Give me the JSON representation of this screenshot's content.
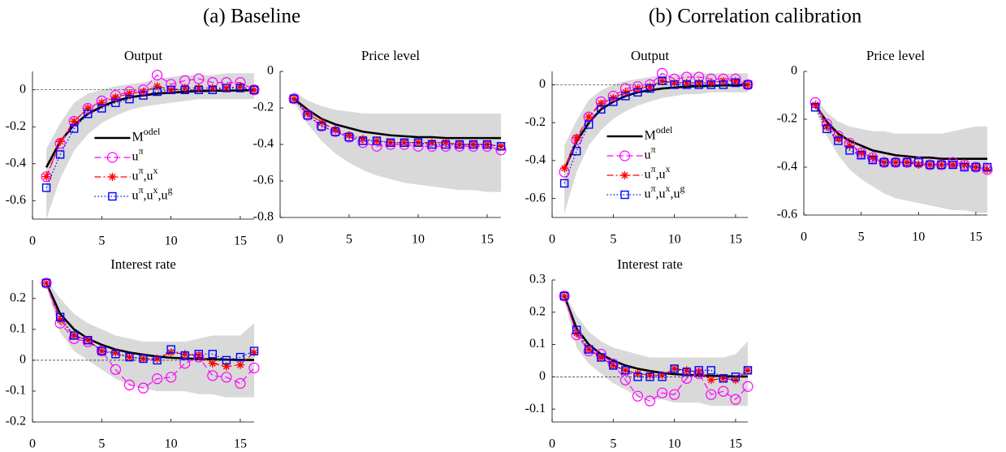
{
  "panel_titles": [
    "(a) Baseline",
    "(b) Correlation calibration"
  ],
  "chart_data": [
    {
      "type": "line",
      "title": "Output",
      "legend": "south",
      "zero_line": true,
      "band_color": "#d9d9d9",
      "x": [
        1,
        2,
        3,
        4,
        5,
        6,
        7,
        8,
        9,
        10,
        11,
        12,
        13,
        14,
        15,
        16
      ],
      "xlim": [
        0,
        16
      ],
      "xticks": [
        0,
        5,
        10,
        15
      ],
      "ylim": [
        -0.7,
        0.1
      ],
      "yticks": [
        -0.6,
        -0.4,
        -0.2,
        0
      ],
      "band_lower": [
        -0.7,
        -0.48,
        -0.33,
        -0.24,
        -0.18,
        -0.14,
        -0.11,
        -0.09,
        -0.08,
        -0.07,
        -0.06,
        -0.05,
        -0.05,
        -0.05,
        -0.05,
        -0.05
      ],
      "band_upper": [
        -0.32,
        -0.18,
        -0.07,
        -0.02,
        0,
        0.02,
        0.03,
        0.04,
        0.06,
        0.07,
        0.08,
        0.08,
        0.08,
        0.09,
        0.09,
        0.09
      ],
      "series": [
        {
          "name": "Model",
          "color": "#000000",
          "line": "solid",
          "marker": "none",
          "values": [
            -0.42,
            -0.28,
            -0.19,
            -0.13,
            -0.09,
            -0.06,
            -0.04,
            -0.03,
            -0.02,
            -0.015,
            -0.01,
            -0.007,
            -0.005,
            -0.004,
            -0.003,
            -0.002
          ]
        },
        {
          "name": "uπ",
          "color": "#ff00ff",
          "line": "dashed",
          "marker": "circle",
          "values": [
            -0.47,
            -0.29,
            -0.17,
            -0.1,
            -0.06,
            -0.03,
            -0.01,
            0,
            0.08,
            0.03,
            0.05,
            0.06,
            0.04,
            0.04,
            0.04,
            0
          ]
        },
        {
          "name": "uπ,ux",
          "color": "#ff0000",
          "line": "dashdot",
          "marker": "asterisk",
          "values": [
            -0.47,
            -0.28,
            -0.17,
            -0.1,
            -0.07,
            -0.04,
            -0.02,
            -0.01,
            0.02,
            0,
            0.01,
            0.01,
            0.01,
            0.01,
            0.02,
            0
          ]
        },
        {
          "name": "uπ,ux,ug",
          "color": "#0000ff",
          "line": "dotted",
          "marker": "square",
          "values": [
            -0.53,
            -0.35,
            -0.21,
            -0.13,
            -0.1,
            -0.07,
            -0.05,
            -0.03,
            -0.01,
            0,
            0,
            0,
            0,
            0.01,
            0.01,
            0
          ]
        }
      ]
    },
    {
      "type": "line",
      "title": "Price level",
      "zero_line": true,
      "band_color": "#d9d9d9",
      "x": [
        1,
        2,
        3,
        4,
        5,
        6,
        7,
        8,
        9,
        10,
        11,
        12,
        13,
        14,
        15,
        16
      ],
      "xlim": [
        0,
        16
      ],
      "xticks": [
        0,
        5,
        10,
        15
      ],
      "ylim": [
        -0.8,
        0
      ],
      "yticks": [
        -0.8,
        -0.6,
        -0.4,
        -0.2,
        0
      ],
      "band_lower": [
        -0.17,
        -0.29,
        -0.38,
        -0.45,
        -0.5,
        -0.54,
        -0.57,
        -0.59,
        -0.61,
        -0.62,
        -0.63,
        -0.64,
        -0.65,
        -0.65,
        -0.66,
        -0.66
      ],
      "band_upper": [
        -0.11,
        -0.16,
        -0.19,
        -0.21,
        -0.22,
        -0.23,
        -0.23,
        -0.23,
        -0.23,
        -0.23,
        -0.23,
        -0.23,
        -0.23,
        -0.23,
        -0.23,
        -0.23
      ],
      "series": [
        {
          "color": "#000000",
          "line": "solid",
          "marker": "none",
          "values": [
            -0.15,
            -0.21,
            -0.26,
            -0.29,
            -0.31,
            -0.33,
            -0.34,
            -0.35,
            -0.355,
            -0.36,
            -0.36,
            -0.365,
            -0.365,
            -0.365,
            -0.365,
            -0.365
          ]
        },
        {
          "color": "#ff00ff",
          "line": "dashed",
          "marker": "circle",
          "values": [
            -0.15,
            -0.24,
            -0.3,
            -0.33,
            -0.36,
            -0.39,
            -0.41,
            -0.4,
            -0.4,
            -0.41,
            -0.41,
            -0.41,
            -0.41,
            -0.41,
            -0.41,
            -0.43
          ]
        },
        {
          "color": "#ff0000",
          "line": "dashdot",
          "marker": "asterisk",
          "values": [
            -0.15,
            -0.23,
            -0.28,
            -0.32,
            -0.35,
            -0.37,
            -0.38,
            -0.39,
            -0.39,
            -0.39,
            -0.39,
            -0.39,
            -0.4,
            -0.4,
            -0.4,
            -0.41
          ]
        },
        {
          "color": "#0000ff",
          "line": "dotted",
          "marker": "square",
          "values": [
            -0.15,
            -0.24,
            -0.3,
            -0.33,
            -0.36,
            -0.38,
            -0.38,
            -0.39,
            -0.39,
            -0.39,
            -0.4,
            -0.4,
            -0.4,
            -0.4,
            -0.4,
            -0.41
          ]
        }
      ]
    },
    {
      "type": "line",
      "title": "Interest rate",
      "zero_line": true,
      "band_color": "#d9d9d9",
      "x": [
        1,
        2,
        3,
        4,
        5,
        6,
        7,
        8,
        9,
        10,
        11,
        12,
        13,
        14,
        15,
        16
      ],
      "xlim": [
        0,
        16
      ],
      "xticks": [
        0,
        5,
        10,
        15
      ],
      "ylim": [
        -0.2,
        0.26
      ],
      "yticks": [
        -0.2,
        -0.1,
        0,
        0.1,
        0.2
      ],
      "band_lower": [
        0.24,
        0.09,
        0.03,
        0,
        -0.03,
        -0.06,
        -0.08,
        -0.09,
        -0.1,
        -0.1,
        -0.1,
        -0.11,
        -0.11,
        -0.12,
        -0.12,
        -0.12
      ],
      "band_upper": [
        0.26,
        0.2,
        0.15,
        0.12,
        0.1,
        0.08,
        0.07,
        0.06,
        0.06,
        0.06,
        0.06,
        0.07,
        0.08,
        0.08,
        0.08,
        0.12
      ],
      "series": [
        {
          "color": "#000000",
          "line": "solid",
          "marker": "none",
          "values": [
            0.25,
            0.15,
            0.1,
            0.07,
            0.05,
            0.035,
            0.025,
            0.018,
            0.012,
            0.008,
            0.006,
            0.004,
            0.003,
            0.002,
            0.001,
            0.001
          ]
        },
        {
          "color": "#ff00ff",
          "line": "dashed",
          "marker": "circle",
          "values": [
            0.25,
            0.12,
            0.07,
            0.06,
            0.03,
            -0.03,
            -0.08,
            -0.09,
            -0.06,
            -0.055,
            -0.01,
            0.01,
            -0.05,
            -0.055,
            -0.075,
            -0.025
          ]
        },
        {
          "color": "#ff0000",
          "line": "dashdot",
          "marker": "asterisk",
          "values": [
            0.25,
            0.13,
            0.08,
            0.065,
            0.03,
            0.025,
            0.01,
            0.005,
            0.005,
            0.025,
            0.02,
            0.015,
            -0.01,
            -0.02,
            -0.015,
            0.025
          ]
        },
        {
          "color": "#0000ff",
          "line": "dotted",
          "marker": "square",
          "values": [
            0.25,
            0.14,
            0.08,
            0.065,
            0.03,
            0.02,
            0.01,
            0.005,
            0,
            0.035,
            0.015,
            0.02,
            0.02,
            0,
            0.01,
            0.03
          ]
        }
      ]
    },
    {
      "type": "line",
      "title": "Output",
      "legend": "south",
      "zero_line": true,
      "band_color": "#d9d9d9",
      "x": [
        1,
        2,
        3,
        4,
        5,
        6,
        7,
        8,
        9,
        10,
        11,
        12,
        13,
        14,
        15,
        16
      ],
      "xlim": [
        0,
        16
      ],
      "xticks": [
        0,
        5,
        10,
        15
      ],
      "ylim": [
        -0.7,
        0.07
      ],
      "yticks": [
        -0.6,
        -0.4,
        -0.2,
        0
      ],
      "band_lower": [
        -0.68,
        -0.46,
        -0.32,
        -0.24,
        -0.18,
        -0.14,
        -0.11,
        -0.09,
        -0.07,
        -0.06,
        -0.05,
        -0.05,
        -0.04,
        -0.04,
        -0.04,
        -0.04
      ],
      "band_upper": [
        -0.32,
        -0.19,
        -0.08,
        -0.03,
        0,
        0.02,
        0.03,
        0.04,
        0.05,
        0.05,
        0.06,
        0.06,
        0.06,
        0.06,
        0.06,
        0.06
      ],
      "series": [
        {
          "name": "Model",
          "color": "#000000",
          "line": "solid",
          "marker": "none",
          "values": [
            -0.45,
            -0.3,
            -0.2,
            -0.13,
            -0.09,
            -0.06,
            -0.04,
            -0.03,
            -0.02,
            -0.015,
            -0.01,
            -0.008,
            -0.006,
            -0.004,
            -0.003,
            -0.002
          ]
        },
        {
          "name": "uπ",
          "color": "#ff00ff",
          "line": "dashed",
          "marker": "circle",
          "values": [
            -0.46,
            -0.29,
            -0.17,
            -0.09,
            -0.06,
            -0.02,
            -0.01,
            0,
            0.06,
            0.03,
            0.04,
            0.04,
            0.03,
            0.03,
            0.03,
            0
          ]
        },
        {
          "name": "uπ,ux",
          "color": "#ff0000",
          "line": "dashdot",
          "marker": "asterisk",
          "values": [
            -0.44,
            -0.28,
            -0.17,
            -0.1,
            -0.07,
            -0.04,
            -0.02,
            -0.01,
            0.02,
            0.01,
            0.01,
            0.01,
            0.01,
            0.02,
            0.02,
            0
          ]
        },
        {
          "name": "uπ,ux,ug",
          "color": "#0000ff",
          "line": "dotted",
          "marker": "square",
          "values": [
            -0.52,
            -0.35,
            -0.21,
            -0.13,
            -0.09,
            -0.06,
            -0.04,
            -0.02,
            0.02,
            0,
            0,
            0,
            0,
            0,
            0.01,
            0
          ]
        }
      ]
    },
    {
      "type": "line",
      "title": "Price level",
      "zero_line": true,
      "band_color": "#d9d9d9",
      "x": [
        1,
        2,
        3,
        4,
        5,
        6,
        7,
        8,
        9,
        10,
        11,
        12,
        13,
        14,
        15,
        16
      ],
      "xlim": [
        0,
        16
      ],
      "xticks": [
        0,
        5,
        10,
        15
      ],
      "ylim": [
        -0.6,
        0
      ],
      "yticks": [
        -0.6,
        -0.4,
        -0.2,
        0
      ],
      "band_lower": [
        -0.16,
        -0.27,
        -0.35,
        -0.41,
        -0.45,
        -0.48,
        -0.51,
        -0.53,
        -0.54,
        -0.55,
        -0.56,
        -0.57,
        -0.58,
        -0.58,
        -0.59,
        -0.59
      ],
      "band_upper": [
        -0.11,
        -0.17,
        -0.21,
        -0.23,
        -0.24,
        -0.25,
        -0.25,
        -0.26,
        -0.26,
        -0.26,
        -0.26,
        -0.26,
        -0.25,
        -0.24,
        -0.23,
        -0.23
      ],
      "series": [
        {
          "color": "#000000",
          "line": "solid",
          "marker": "none",
          "values": [
            -0.14,
            -0.21,
            -0.26,
            -0.29,
            -0.31,
            -0.33,
            -0.34,
            -0.35,
            -0.355,
            -0.36,
            -0.36,
            -0.365,
            -0.365,
            -0.365,
            -0.365,
            -0.365
          ]
        },
        {
          "color": "#ff00ff",
          "line": "dashed",
          "marker": "circle",
          "values": [
            -0.13,
            -0.22,
            -0.27,
            -0.3,
            -0.34,
            -0.36,
            -0.38,
            -0.38,
            -0.38,
            -0.38,
            -0.39,
            -0.39,
            -0.38,
            -0.39,
            -0.4,
            -0.41
          ]
        },
        {
          "color": "#ff0000",
          "line": "dashdot",
          "marker": "asterisk",
          "values": [
            -0.14,
            -0.23,
            -0.28,
            -0.31,
            -0.34,
            -0.36,
            -0.38,
            -0.38,
            -0.38,
            -0.39,
            -0.39,
            -0.39,
            -0.39,
            -0.39,
            -0.4,
            -0.41
          ]
        },
        {
          "color": "#0000ff",
          "line": "dotted",
          "marker": "square",
          "values": [
            -0.15,
            -0.24,
            -0.29,
            -0.33,
            -0.35,
            -0.37,
            -0.38,
            -0.38,
            -0.38,
            -0.38,
            -0.39,
            -0.39,
            -0.39,
            -0.4,
            -0.4,
            -0.4
          ]
        }
      ]
    },
    {
      "type": "line",
      "title": "Interest rate",
      "zero_line": true,
      "band_color": "#d9d9d9",
      "x": [
        1,
        2,
        3,
        4,
        5,
        6,
        7,
        8,
        9,
        10,
        11,
        12,
        13,
        14,
        15,
        16
      ],
      "xlim": [
        0,
        16
      ],
      "xticks": [
        0,
        5,
        10,
        15
      ],
      "ylim": [
        -0.14,
        0.3
      ],
      "yticks": [
        -0.1,
        0,
        0.1,
        0.2,
        0.3
      ],
      "band_lower": [
        0.24,
        0.09,
        0.04,
        0.01,
        -0.02,
        -0.04,
        -0.06,
        -0.07,
        -0.07,
        -0.08,
        -0.08,
        -0.08,
        -0.09,
        -0.09,
        -0.09,
        -0.09
      ],
      "band_upper": [
        0.26,
        0.19,
        0.14,
        0.11,
        0.09,
        0.08,
        0.07,
        0.06,
        0.06,
        0.06,
        0.06,
        0.06,
        0.06,
        0.06,
        0.07,
        0.11
      ],
      "series": [
        {
          "color": "#000000",
          "line": "solid",
          "marker": "none",
          "values": [
            0.25,
            0.15,
            0.1,
            0.07,
            0.05,
            0.035,
            0.025,
            0.018,
            0.012,
            0.008,
            0.006,
            0.004,
            0.003,
            0.002,
            0.001,
            0.001
          ]
        },
        {
          "color": "#ff00ff",
          "line": "dashed",
          "marker": "circle",
          "values": [
            0.25,
            0.13,
            0.08,
            0.07,
            0.04,
            -0.01,
            -0.06,
            -0.075,
            -0.05,
            -0.055,
            -0.005,
            0.01,
            -0.055,
            -0.045,
            -0.07,
            -0.03
          ]
        },
        {
          "color": "#ff0000",
          "line": "dashdot",
          "marker": "asterisk",
          "values": [
            0.25,
            0.135,
            0.085,
            0.06,
            0.035,
            0.02,
            0.01,
            0.005,
            0.005,
            0.025,
            0.02,
            0.015,
            -0.01,
            -0.005,
            -0.01,
            0.02
          ]
        },
        {
          "color": "#0000ff",
          "line": "dotted",
          "marker": "square",
          "values": [
            0.25,
            0.145,
            0.085,
            0.06,
            0.035,
            0.02,
            0,
            0,
            0,
            0.025,
            0.015,
            0.02,
            0.02,
            -0.005,
            0,
            0.02
          ]
        }
      ]
    }
  ]
}
